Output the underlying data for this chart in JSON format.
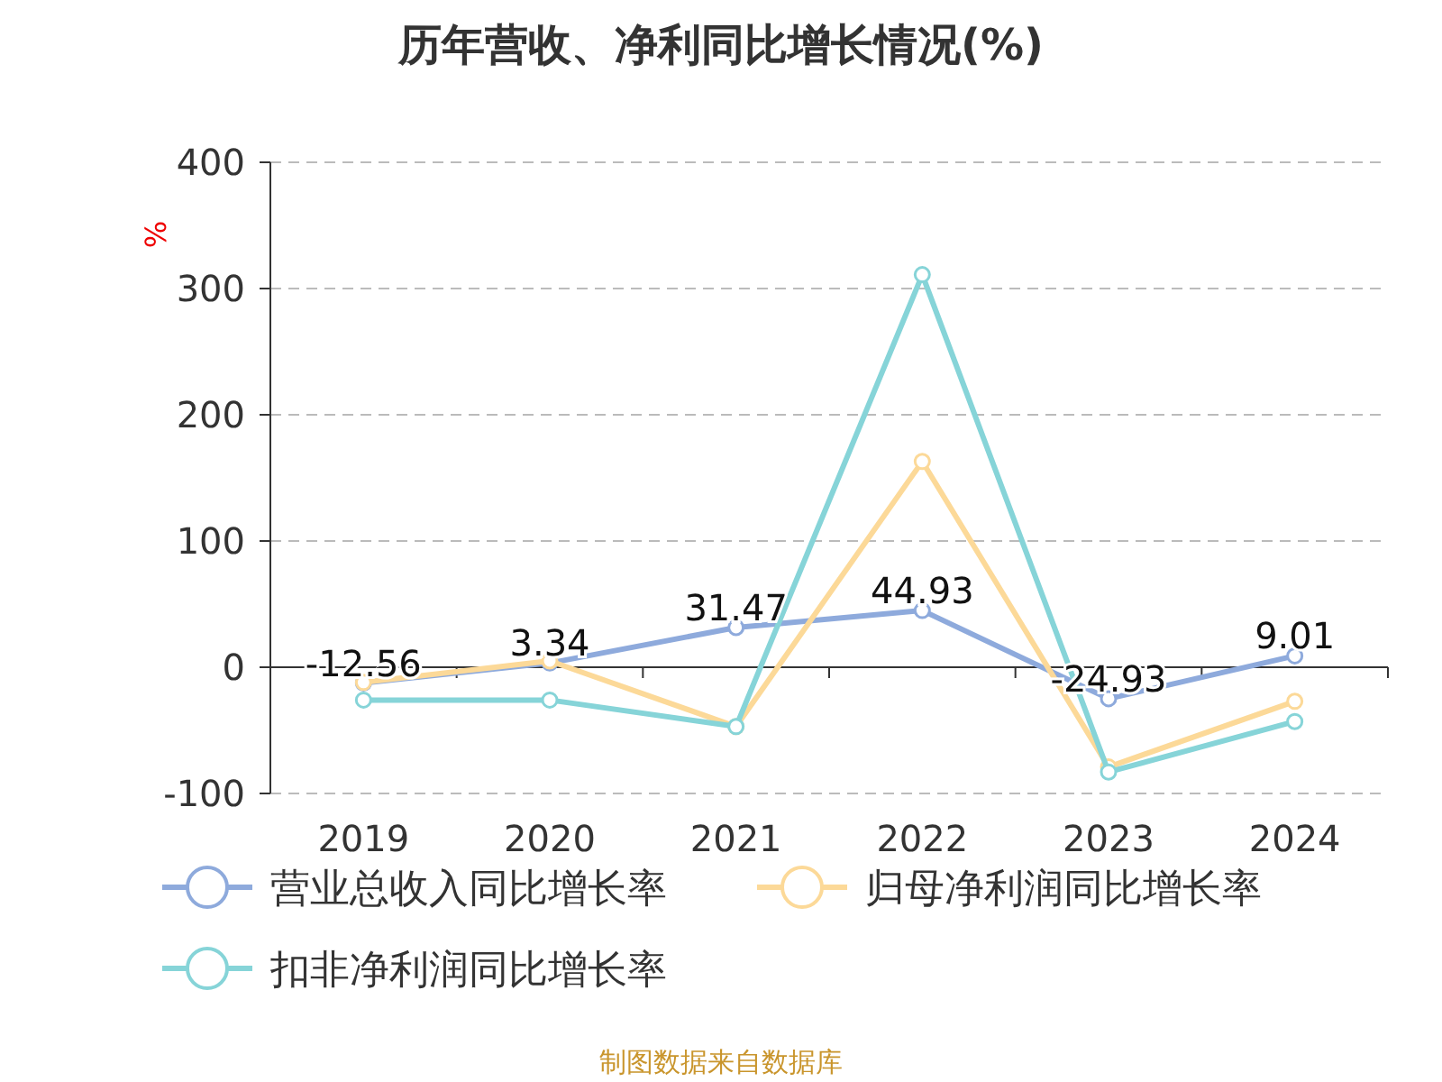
{
  "chart_data": {
    "type": "line",
    "title": "历年营收、净利同比增长情况(%)",
    "ylabel": "%",
    "categories": [
      "2019",
      "2020",
      "2021",
      "2022",
      "2023",
      "2024"
    ],
    "series": [
      {
        "name": "营业总收入同比增长率",
        "color": "#8eaadc",
        "values": [
          -12.56,
          3.34,
          31.47,
          44.93,
          -24.93,
          9.01
        ],
        "value_labels": [
          "-12.56",
          "3.34",
          "31.47",
          "44.93",
          "-24.93",
          "9.01"
        ]
      },
      {
        "name": "归母净利润同比增长率",
        "color": "#fcd998",
        "values": [
          -12,
          5,
          -47,
          163,
          -79,
          -27
        ]
      },
      {
        "name": "扣非净利润同比增长率",
        "color": "#86d4d8",
        "values": [
          -26,
          -26,
          -47,
          311,
          -83,
          -43
        ]
      }
    ],
    "ylim": [
      -100,
      400
    ],
    "yticks": [
      -100,
      0,
      100,
      200,
      300,
      400
    ],
    "grid": "y",
    "legend": "bottom",
    "marker": "circle",
    "line_style": "solid",
    "annotations": [
      "制图数据来自数据库"
    ]
  }
}
